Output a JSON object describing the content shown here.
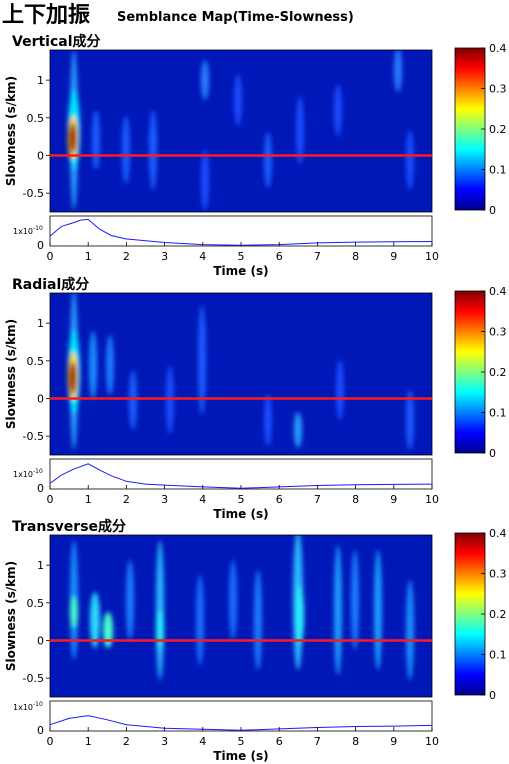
{
  "header": {
    "main_title": "上下加振",
    "subtitle": "Semblance Map(Time-Slowness)"
  },
  "colorbar": {
    "ticks": [
      "0",
      "0.1",
      "0.2",
      "0.3",
      "0.4"
    ],
    "range": [
      0,
      0.4
    ],
    "colormap": "jet"
  },
  "axis_labels": {
    "y": "Slowness (s/km)",
    "x": "Time (s)"
  },
  "chart_data": [
    {
      "type": "heatmap",
      "title": "Vertical成分",
      "xlim": [
        0,
        10
      ],
      "ylim": [
        -0.75,
        1.4
      ],
      "yticks": [
        "-0.5",
        "0",
        "0.5",
        "1"
      ],
      "xticks": [
        "0",
        "1",
        "2",
        "3",
        "4",
        "5",
        "6",
        "7",
        "8",
        "9",
        "10"
      ],
      "reference_line_slowness": 0,
      "clim": [
        0,
        0.4
      ],
      "peak": {
        "time": 0.65,
        "slowness": 0.15,
        "value": 0.4
      },
      "envelope": {
        "type": "line",
        "ytick_label": "1x10",
        "ytick_exp": "-10",
        "ytick_zero": "0",
        "x": [
          0,
          0.3,
          0.6,
          0.8,
          1.0,
          1.3,
          1.6,
          2,
          3,
          4,
          5,
          6,
          7,
          8,
          9,
          10
        ],
        "y": [
          0.7,
          1.4,
          1.65,
          1.85,
          1.9,
          1.2,
          0.75,
          0.5,
          0.25,
          0.1,
          0.05,
          0.1,
          0.22,
          0.28,
          0.3,
          0.32
        ]
      }
    },
    {
      "type": "heatmap",
      "title": "Radial成分",
      "xlim": [
        0,
        10
      ],
      "ylim": [
        -0.75,
        1.4
      ],
      "yticks": [
        "-0.5",
        "0",
        "0.5",
        "1"
      ],
      "xticks": [
        "0",
        "1",
        "2",
        "3",
        "4",
        "5",
        "6",
        "7",
        "8",
        "9",
        "10"
      ],
      "reference_line_slowness": 0,
      "clim": [
        0,
        0.4
      ],
      "peak": {
        "time": 0.65,
        "slowness": 0.3,
        "value": 0.4
      },
      "envelope": {
        "type": "line",
        "ytick_label": "1x10",
        "ytick_exp": "-10",
        "ytick_zero": "0",
        "x": [
          0,
          0.3,
          0.6,
          1.0,
          1.3,
          1.6,
          2,
          2.5,
          3,
          4,
          5,
          6,
          7,
          8,
          9,
          10
        ],
        "y": [
          0.4,
          1.0,
          1.4,
          1.8,
          1.35,
          0.95,
          0.55,
          0.35,
          0.28,
          0.15,
          0.05,
          0.15,
          0.25,
          0.3,
          0.33,
          0.35
        ]
      }
    },
    {
      "type": "heatmap",
      "title": "Transverse成分",
      "xlim": [
        0,
        10
      ],
      "ylim": [
        -0.75,
        1.4
      ],
      "yticks": [
        "-0.5",
        "0",
        "0.5",
        "1"
      ],
      "xticks": [
        "0",
        "1",
        "2",
        "3",
        "4",
        "5",
        "6",
        "7",
        "8",
        "9",
        "10"
      ],
      "reference_line_slowness": 0,
      "clim": [
        0,
        0.4
      ],
      "peak": {
        "time": 0.65,
        "slowness": 0.3,
        "value": 0.25
      },
      "envelope": {
        "type": "line",
        "ytick_label": "1x10",
        "ytick_exp": "-10",
        "ytick_zero": "0",
        "x": [
          0,
          0.5,
          1.0,
          1.5,
          2,
          3,
          4,
          5,
          6,
          7,
          8,
          9,
          10
        ],
        "y": [
          0.45,
          0.9,
          1.1,
          0.8,
          0.45,
          0.2,
          0.12,
          0.05,
          0.15,
          0.25,
          0.32,
          0.35,
          0.4
        ]
      }
    }
  ]
}
